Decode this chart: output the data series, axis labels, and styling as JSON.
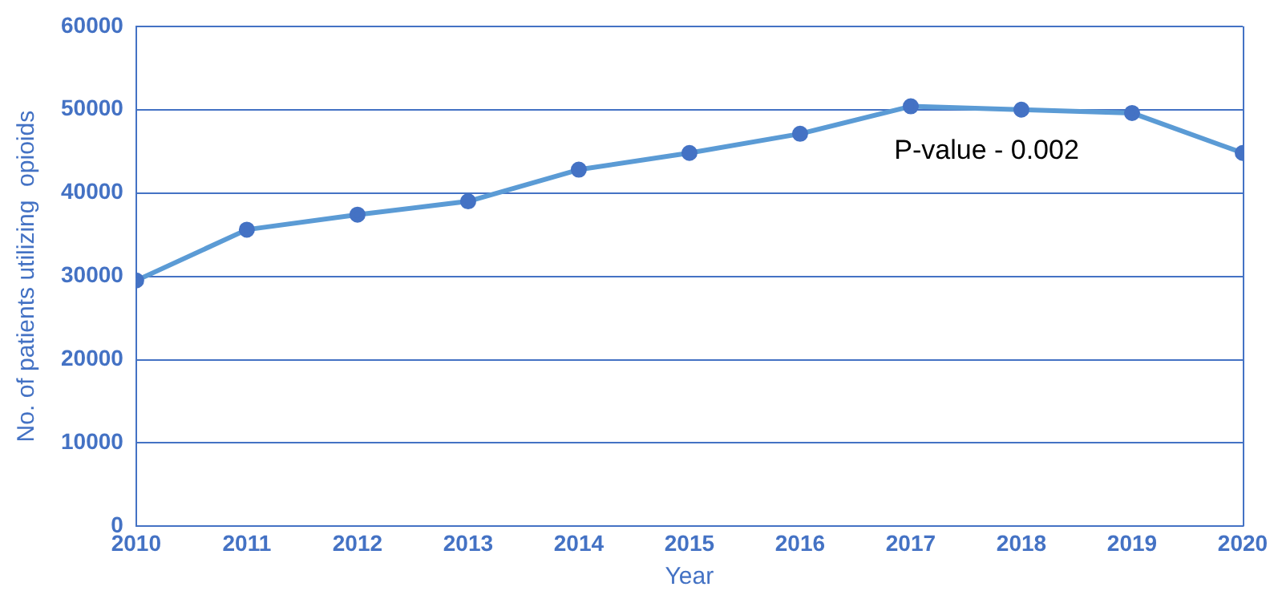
{
  "chart_data": {
    "type": "line",
    "xlabel": "Year",
    "ylabel": "No. of patients utilizing  opioids",
    "x": [
      2010,
      2011,
      2012,
      2013,
      2014,
      2015,
      2016,
      2017,
      2018,
      2019,
      2020
    ],
    "series": [
      {
        "color": "#5b9bd5",
        "values": [
          29500,
          35600,
          37400,
          39000,
          42800,
          44800,
          47100,
          50400,
          50000,
          49600,
          44800
        ]
      }
    ],
    "xlim": [
      2010,
      2020
    ],
    "xticks": [
      2010,
      2011,
      2012,
      2013,
      2014,
      2015,
      2016,
      2017,
      2018,
      2019,
      2020
    ],
    "ylim": [
      0,
      60000
    ],
    "yticks": [
      0,
      10000,
      20000,
      30000,
      40000,
      50000,
      60000
    ],
    "grid": "y",
    "legend": false,
    "marker": "circle",
    "line_style": "solid",
    "annotations": [
      "P-value - 0.002"
    ]
  }
}
